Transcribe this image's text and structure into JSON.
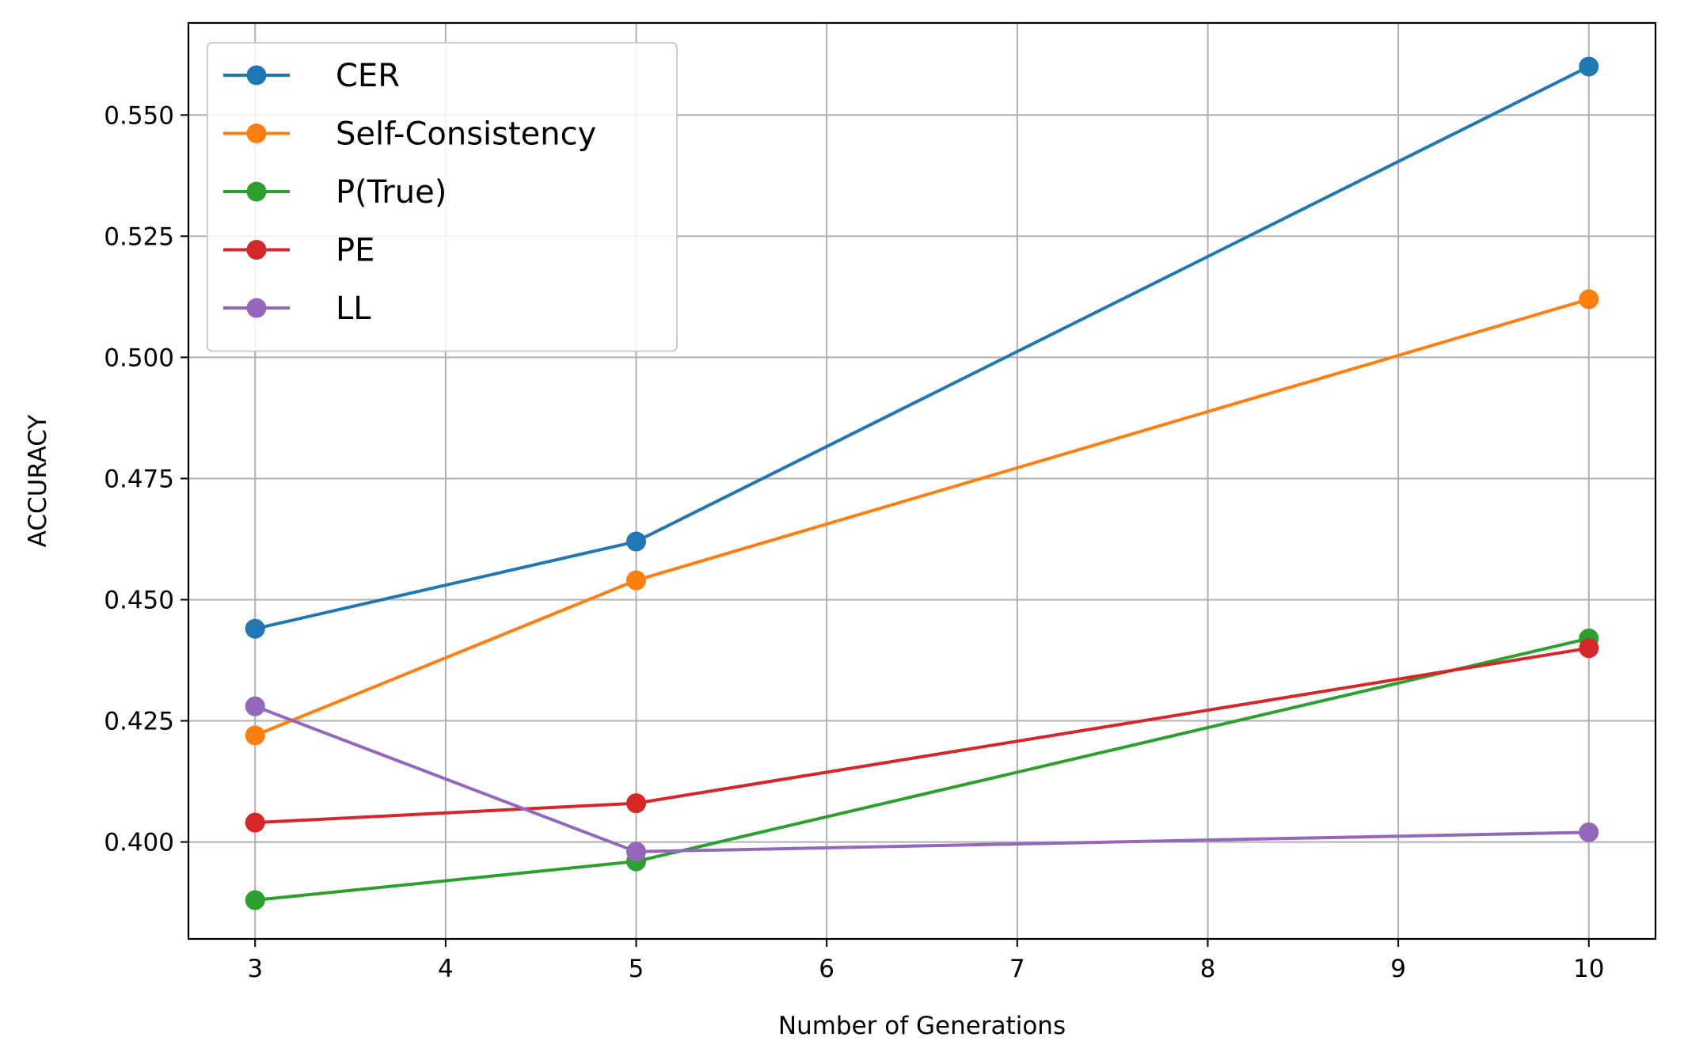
{
  "chart_data": {
    "type": "line",
    "title": "",
    "xlabel": "Number of Generations",
    "ylabel": "ACCURACY",
    "x": [
      3,
      5,
      10
    ],
    "xlim": [
      2.65,
      10.35
    ],
    "ylim": [
      0.38,
      0.569
    ],
    "xticks": [
      3,
      4,
      5,
      6,
      7,
      8,
      9,
      10
    ],
    "yticks": [
      0.4,
      0.425,
      0.45,
      0.475,
      0.5,
      0.525,
      0.55
    ],
    "xtick_labels": [
      "3",
      "4",
      "5",
      "6",
      "7",
      "8",
      "9",
      "10"
    ],
    "ytick_labels": [
      "0.400",
      "0.425",
      "0.450",
      "0.475",
      "0.500",
      "0.525",
      "0.550"
    ],
    "grid": true,
    "legend_position": "top-left",
    "series": [
      {
        "name": "CER",
        "color": "#1f77b4",
        "values": [
          0.444,
          0.462,
          0.56
        ]
      },
      {
        "name": "Self-Consistency",
        "color": "#ff7f0e",
        "values": [
          0.422,
          0.454,
          0.512
        ]
      },
      {
        "name": "P(True)",
        "color": "#2ca02c",
        "values": [
          0.388,
          0.396,
          0.442
        ]
      },
      {
        "name": "PE",
        "color": "#d62728",
        "values": [
          0.404,
          0.408,
          0.44
        ]
      },
      {
        "name": "LL",
        "color": "#9467bd",
        "values": [
          0.428,
          0.398,
          0.402
        ]
      }
    ]
  }
}
